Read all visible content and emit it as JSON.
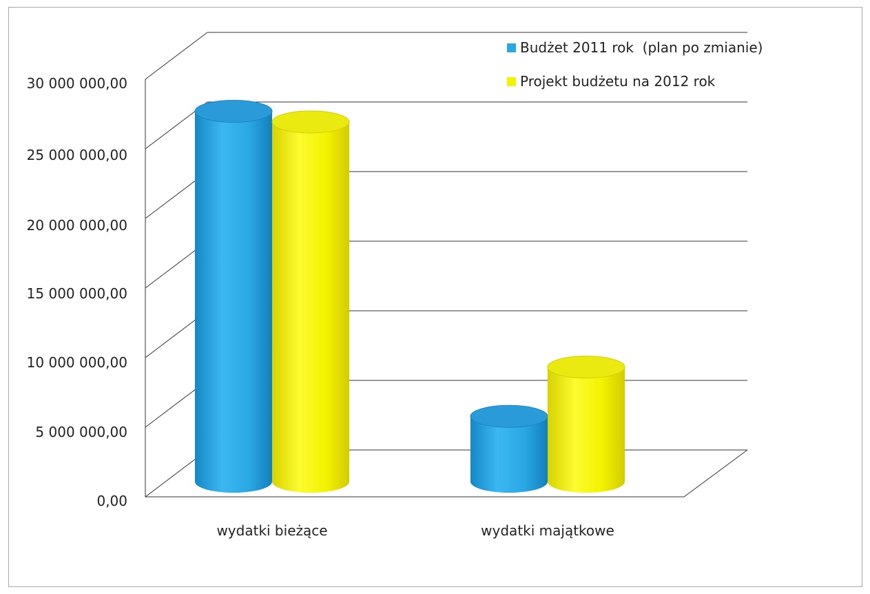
{
  "chart_data": {
    "type": "bar",
    "style": "3d-cylinder",
    "categories": [
      "wydatki bieżące",
      "wydatki majątkowe"
    ],
    "series": [
      {
        "name": "Budżet 2011 rok  (plan po zmianie)",
        "values": [
          27800000,
          4900000
        ],
        "color": "#2aa8e4"
      },
      {
        "name": "Projekt budżetu na 2012 rok",
        "values": [
          27000000,
          8600000
        ],
        "color": "#f3f300"
      }
    ],
    "yticks": [
      "30 000 000,00",
      "25 000 000,00",
      "20 000 000,00",
      "15 000 000,00",
      "10 000 000,00",
      "5 000 000,00",
      "0,00"
    ],
    "ylim": [
      0,
      30000000
    ],
    "grid": true,
    "legend_position": "top-right"
  }
}
